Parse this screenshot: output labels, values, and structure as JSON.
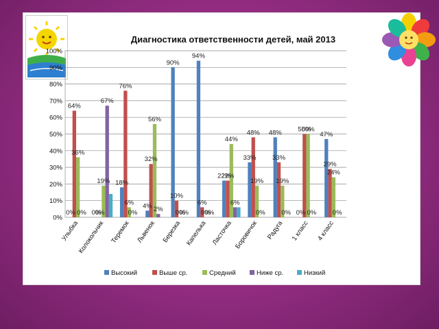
{
  "colors": {
    "background": "#9a2f86",
    "series": [
      "#4f81bd",
      "#c0504d",
      "#9bbb59",
      "#8064a2",
      "#4bacc6"
    ]
  },
  "icons": [
    "sun-logo-icon",
    "flower-decoration-icon"
  ],
  "chart_data": {
    "type": "bar",
    "title": "Диагностика ответственности детей, май 2013",
    "xlabel": "",
    "ylabel": "",
    "ylim": [
      0,
      100
    ],
    "ytick_labels": [
      "0%",
      "10%",
      "20%",
      "30%",
      "40%",
      "50%",
      "60%",
      "70%",
      "80%",
      "90%",
      "100%"
    ],
    "grid": true,
    "legend_position": "bottom",
    "categories": [
      "Улыбка",
      "Колокольчик",
      "Теремок",
      "Львенок",
      "Березка",
      "Капелька",
      "Ласточка",
      "Боровичок",
      "Радуга",
      "1 класс",
      "4 класс"
    ],
    "series": [
      {
        "name": "Высокий",
        "values": [
          0,
          0,
          18,
          4,
          90,
          94,
          22,
          33,
          48,
          0,
          47
        ]
      },
      {
        "name": "Выше ср.",
        "values": [
          64,
          0,
          76,
          32,
          10,
          6,
          22,
          48,
          33,
          50,
          29
        ]
      },
      {
        "name": "Средний",
        "values": [
          36,
          19,
          6,
          56,
          0,
          0,
          44,
          19,
          19,
          50,
          24
        ]
      },
      {
        "name": "Ниже ср.",
        "values": [
          0,
          67,
          0,
          2,
          0,
          0,
          6,
          0,
          0,
          0,
          0
        ]
      },
      {
        "name": "Низкий",
        "values": [
          0,
          14,
          0,
          0,
          0,
          0,
          6,
          0,
          0,
          0,
          0
        ]
      }
    ],
    "data_labels": [
      {
        "text": "64%",
        "series": 1,
        "category": 0
      },
      {
        "text": "36%",
        "series": 2,
        "category": 0
      },
      {
        "text": "0%",
        "series": 0,
        "category": 0
      },
      {
        "text": "0%",
        "series": 3,
        "category": 0
      },
      {
        "text": "0%",
        "series": 0,
        "category": 1
      },
      {
        "text": "0%",
        "series": 1,
        "category": 1
      },
      {
        "text": "19%",
        "series": 2,
        "category": 1
      },
      {
        "text": "67%",
        "series": 3,
        "category": 1
      },
      {
        "text": "18%",
        "series": 0,
        "category": 2
      },
      {
        "text": "76%",
        "series": 1,
        "category": 2
      },
      {
        "text": "6%",
        "series": 2,
        "category": 2
      },
      {
        "text": "0%",
        "series": 3,
        "category": 2
      },
      {
        "text": "4%",
        "series": 0,
        "category": 3
      },
      {
        "text": "32%",
        "series": 1,
        "category": 3
      },
      {
        "text": "56%",
        "series": 2,
        "category": 3
      },
      {
        "text": "2%",
        "series": 3,
        "category": 3
      },
      {
        "text": "90%",
        "series": 0,
        "category": 4
      },
      {
        "text": "10%",
        "series": 1,
        "category": 4
      },
      {
        "text": "0%",
        "series": 2,
        "category": 4
      },
      {
        "text": "0%",
        "series": 3,
        "category": 4
      },
      {
        "text": "94%",
        "series": 0,
        "category": 5
      },
      {
        "text": "6%",
        "series": 1,
        "category": 5
      },
      {
        "text": "0%",
        "series": 2,
        "category": 5
      },
      {
        "text": "0%",
        "series": 3,
        "category": 5
      },
      {
        "text": "22%",
        "series": 0,
        "category": 6
      },
      {
        "text": "22%",
        "series": 1,
        "category": 6
      },
      {
        "text": "44%",
        "series": 2,
        "category": 6
      },
      {
        "text": "6%",
        "series": 3,
        "category": 6
      },
      {
        "text": "33%",
        "series": 0,
        "category": 7
      },
      {
        "text": "48%",
        "series": 1,
        "category": 7
      },
      {
        "text": "19%",
        "series": 2,
        "category": 7
      },
      {
        "text": "0%",
        "series": 3,
        "category": 7
      },
      {
        "text": "48%",
        "series": 0,
        "category": 8
      },
      {
        "text": "33%",
        "series": 1,
        "category": 8
      },
      {
        "text": "19%",
        "series": 2,
        "category": 8
      },
      {
        "text": "0%",
        "series": 3,
        "category": 8
      },
      {
        "text": "0%",
        "series": 0,
        "category": 9
      },
      {
        "text": "50%",
        "series": 1,
        "category": 9
      },
      {
        "text": "50%",
        "series": 2,
        "category": 9
      },
      {
        "text": "0%",
        "series": 3,
        "category": 9
      },
      {
        "text": "47%",
        "series": 0,
        "category": 10
      },
      {
        "text": "29%",
        "series": 1,
        "category": 10
      },
      {
        "text": "24%",
        "series": 2,
        "category": 10
      },
      {
        "text": "0%",
        "series": 3,
        "category": 10
      }
    ]
  }
}
